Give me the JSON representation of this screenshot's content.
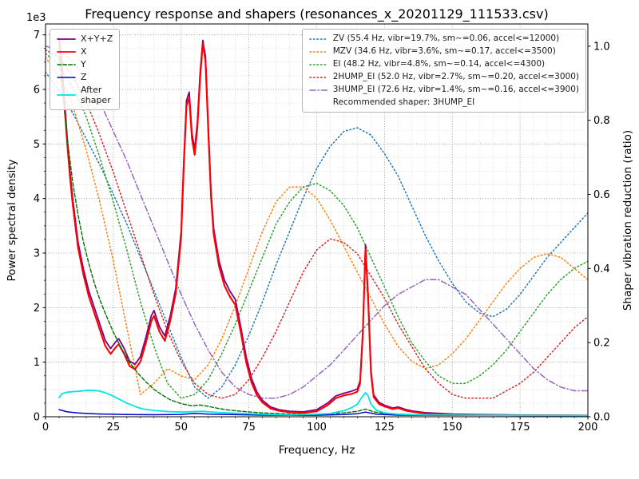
{
  "chart_data": {
    "type": "line",
    "title": "Frequency response and shapers (resonances_x_20201129_111533.csv)",
    "xlabel": "Frequency, Hz",
    "ylabel_left": "Power spectral density",
    "ylabel_right": "Shaper vibration reduction (ratio)",
    "offset_text": "1e3",
    "xlim": [
      0,
      200
    ],
    "ylim_left": [
      0,
      7200
    ],
    "ylim_right": [
      0,
      1.06
    ],
    "x_ticks": [
      0,
      25,
      50,
      75,
      100,
      125,
      150,
      175,
      200
    ],
    "x_tick_labels": [
      "0",
      "25",
      "50",
      "75",
      "100",
      "125",
      "150",
      "175",
      "200"
    ],
    "y_ticks_left": [
      0,
      1000,
      2000,
      3000,
      4000,
      5000,
      6000,
      7000
    ],
    "y_tick_labels_left": [
      "0",
      "1",
      "2",
      "3",
      "4",
      "5",
      "6",
      "7"
    ],
    "y_ticks_right": [
      0,
      0.2,
      0.4,
      0.6,
      0.8,
      1.0
    ],
    "y_tick_labels_right": [
      "0.0",
      "0.2",
      "0.4",
      "0.6",
      "0.8",
      "1.0"
    ],
    "x_minor_step": 5,
    "y_minor_step_left": 250,
    "grid": {
      "major_color": "#8f8f8f",
      "minor_color": "#d4d4d4",
      "on": true
    },
    "legend_left_position": "upper left",
    "legend_right_position": "upper right",
    "recommended_label": "Recommended shaper: 3HUMP_EI",
    "psd_series": [
      {
        "id": "x-y-z",
        "label": "X+Y+Z",
        "color": "#800080",
        "style": "solid",
        "width": 1.8,
        "x": [
          5,
          6,
          7,
          8,
          9,
          10,
          12,
          14,
          16,
          18,
          20,
          22,
          24,
          26,
          27,
          29,
          31,
          33,
          35,
          37,
          39,
          40,
          42,
          44,
          46,
          48,
          50,
          51,
          52,
          53,
          54,
          55,
          56,
          57,
          58,
          59,
          60,
          61,
          62,
          64,
          66,
          68,
          70,
          72,
          74,
          76,
          78,
          80,
          83,
          86,
          90,
          95,
          100,
          104,
          107,
          110,
          113,
          115,
          116,
          117,
          118,
          119,
          120,
          121,
          123,
          125,
          128,
          130,
          133,
          136,
          140,
          150,
          160,
          180,
          200
        ],
        "y": [
          6950,
          6500,
          5800,
          5100,
          4500,
          4000,
          3200,
          2700,
          2300,
          2000,
          1700,
          1400,
          1250,
          1380,
          1430,
          1250,
          1020,
          960,
          1100,
          1450,
          1850,
          1950,
          1650,
          1480,
          1850,
          2350,
          3400,
          4700,
          5800,
          5950,
          5200,
          4900,
          5400,
          6300,
          6900,
          6600,
          5350,
          4150,
          3450,
          2850,
          2500,
          2300,
          2150,
          1650,
          1100,
          700,
          450,
          300,
          180,
          130,
          100,
          90,
          130,
          250,
          380,
          430,
          470,
          510,
          660,
          1560,
          3150,
          2180,
          860,
          400,
          260,
          210,
          160,
          180,
          130,
          100,
          75,
          50,
          40,
          30,
          25
        ]
      },
      {
        "id": "x",
        "label": "X",
        "color": "#ff0000",
        "style": "solid",
        "width": 2.1,
        "x": [
          5,
          6,
          7,
          8,
          9,
          10,
          12,
          14,
          16,
          18,
          20,
          22,
          24,
          26,
          27,
          29,
          31,
          33,
          35,
          37,
          39,
          40,
          42,
          44,
          46,
          48,
          50,
          51,
          52,
          53,
          54,
          55,
          56,
          57,
          58,
          59,
          60,
          61,
          62,
          64,
          66,
          68,
          70,
          72,
          74,
          76,
          78,
          80,
          83,
          86,
          90,
          95,
          100,
          104,
          107,
          110,
          113,
          115,
          116,
          117,
          118,
          119,
          120,
          121,
          123,
          125,
          128,
          130,
          133,
          136,
          140,
          150,
          160,
          180,
          200
        ],
        "y": [
          6880,
          6400,
          5700,
          5000,
          4400,
          3900,
          3100,
          2600,
          2200,
          1900,
          1600,
          1300,
          1150,
          1280,
          1330,
          1150,
          930,
          870,
          1010,
          1350,
          1750,
          1850,
          1560,
          1390,
          1760,
          2260,
          3300,
          4600,
          5700,
          5850,
          5100,
          4800,
          5300,
          6200,
          6850,
          6500,
          5250,
          4050,
          3350,
          2750,
          2400,
          2200,
          2050,
          1550,
          1000,
          620,
          390,
          260,
          150,
          110,
          80,
          70,
          100,
          210,
          340,
          390,
          420,
          460,
          610,
          1500,
          3080,
          2110,
          800,
          360,
          230,
          190,
          140,
          160,
          110,
          85,
          60,
          40,
          32,
          26,
          21
        ]
      },
      {
        "id": "y",
        "label": "Y",
        "color": "#007000",
        "style": "dashed",
        "width": 1.4,
        "x": [
          5,
          6,
          7,
          8,
          10,
          12,
          14,
          16,
          18,
          20,
          22,
          25,
          28,
          31,
          34,
          37,
          40,
          43,
          46,
          50,
          54,
          57,
          60,
          64,
          68,
          72,
          76,
          80,
          90,
          100,
          110,
          115,
          118,
          121,
          125,
          130,
          140,
          160,
          180,
          200
        ],
        "y": [
          6600,
          6100,
          5600,
          5100,
          4300,
          3700,
          3200,
          2800,
          2450,
          2150,
          1900,
          1550,
          1250,
          1000,
          800,
          640,
          500,
          400,
          310,
          240,
          200,
          215,
          190,
          150,
          120,
          100,
          85,
          70,
          50,
          45,
          70,
          100,
          140,
          90,
          60,
          45,
          35,
          28,
          22,
          20
        ]
      },
      {
        "id": "z",
        "label": "Z",
        "color": "#0000cc",
        "style": "solid",
        "width": 1.5,
        "x": [
          5,
          8,
          12,
          16,
          20,
          25,
          30,
          40,
          50,
          55,
          60,
          70,
          80,
          100,
          110,
          115,
          118,
          122,
          130,
          150,
          200
        ],
        "y": [
          130,
          90,
          70,
          58,
          50,
          45,
          40,
          36,
          42,
          60,
          48,
          38,
          30,
          28,
          40,
          55,
          85,
          45,
          30,
          25,
          20
        ]
      },
      {
        "id": "after-shaper",
        "label": "After\nshaper",
        "color": "#00e5e5",
        "style": "solid",
        "width": 1.8,
        "x": [
          5,
          6,
          8,
          10,
          12,
          14,
          16,
          18,
          20,
          22,
          24,
          26,
          28,
          30,
          32,
          34,
          36,
          40,
          45,
          50,
          55,
          58,
          60,
          65,
          70,
          80,
          90,
          100,
          105,
          110,
          113,
          115,
          117,
          118,
          119,
          120,
          122,
          125,
          130,
          140,
          160,
          200
        ],
        "y": [
          350,
          420,
          450,
          460,
          465,
          475,
          485,
          480,
          470,
          440,
          400,
          350,
          300,
          250,
          210,
          170,
          140,
          115,
          95,
          85,
          95,
          100,
          90,
          75,
          65,
          45,
          35,
          45,
          60,
          110,
          170,
          230,
          380,
          440,
          380,
          230,
          120,
          70,
          45,
          35,
          28,
          22
        ]
      }
    ],
    "shaper_x": [
      0,
      5,
      10,
      15,
      20,
      25,
      30,
      35,
      40,
      45,
      50,
      55,
      60,
      65,
      70,
      75,
      80,
      85,
      90,
      95,
      100,
      105,
      110,
      115,
      120,
      125,
      130,
      135,
      140,
      145,
      150,
      155,
      160,
      165,
      170,
      175,
      180,
      185,
      190,
      195,
      200
    ],
    "shaper_series": [
      {
        "id": "zv",
        "label": "ZV (55.4 Hz, vibr=19.7%, sm~=0.06, accel<=12000)",
        "color": "#1f77b4",
        "style": "dotted",
        "width": 1.5,
        "values": [
          0.93,
          0.88,
          0.82,
          0.75,
          0.68,
          0.6,
          0.52,
          0.43,
          0.34,
          0.25,
          0.16,
          0.08,
          0.05,
          0.08,
          0.14,
          0.22,
          0.31,
          0.41,
          0.5,
          0.59,
          0.67,
          0.73,
          0.77,
          0.78,
          0.76,
          0.71,
          0.65,
          0.57,
          0.49,
          0.42,
          0.36,
          0.31,
          0.28,
          0.27,
          0.29,
          0.33,
          0.38,
          0.43,
          0.47,
          0.51,
          0.55
        ]
      },
      {
        "id": "mzv",
        "label": "MZV (34.6 Hz, vibr=3.6%, sm~=0.17, accel<=3500)",
        "color": "#ff7f0e",
        "style": "dotted",
        "width": 1.5,
        "values": [
          0.97,
          0.92,
          0.84,
          0.72,
          0.58,
          0.42,
          0.24,
          0.06,
          0.09,
          0.13,
          0.11,
          0.1,
          0.14,
          0.21,
          0.3,
          0.4,
          0.5,
          0.58,
          0.62,
          0.62,
          0.59,
          0.53,
          0.46,
          0.39,
          0.32,
          0.25,
          0.19,
          0.15,
          0.13,
          0.14,
          0.17,
          0.21,
          0.26,
          0.31,
          0.36,
          0.4,
          0.43,
          0.44,
          0.43,
          0.4,
          0.37
        ]
      },
      {
        "id": "ei",
        "label": "EI (48.2 Hz, vibr=4.8%, sm~=0.14, accel<=4300)",
        "color": "#2ca02c",
        "style": "dotted",
        "width": 1.5,
        "values": [
          0.98,
          0.95,
          0.89,
          0.81,
          0.7,
          0.58,
          0.45,
          0.31,
          0.19,
          0.09,
          0.05,
          0.06,
          0.1,
          0.17,
          0.25,
          0.34,
          0.43,
          0.52,
          0.58,
          0.62,
          0.63,
          0.61,
          0.57,
          0.51,
          0.43,
          0.35,
          0.27,
          0.2,
          0.15,
          0.11,
          0.09,
          0.09,
          0.11,
          0.14,
          0.18,
          0.23,
          0.28,
          0.33,
          0.37,
          0.4,
          0.42
        ]
      },
      {
        "id": "2hump_ei",
        "label": "2HUMP_EI (52.0 Hz, vibr=2.7%, sm~=0.20, accel<=3000)",
        "color": "#d62728",
        "style": "dotted",
        "width": 1.5,
        "values": [
          0.99,
          0.97,
          0.92,
          0.85,
          0.76,
          0.66,
          0.55,
          0.44,
          0.33,
          0.23,
          0.15,
          0.09,
          0.06,
          0.05,
          0.06,
          0.1,
          0.16,
          0.23,
          0.31,
          0.39,
          0.45,
          0.48,
          0.47,
          0.44,
          0.38,
          0.32,
          0.25,
          0.19,
          0.13,
          0.09,
          0.06,
          0.05,
          0.05,
          0.05,
          0.07,
          0.09,
          0.12,
          0.16,
          0.2,
          0.24,
          0.27
        ]
      },
      {
        "id": "3hump_ei",
        "label": "3HUMP_EI (72.6 Hz, vibr=1.4%, sm~=0.16, accel<=3900)",
        "color": "#9467bd",
        "style": "dashdot",
        "width": 1.5,
        "values": [
          1.0,
          0.99,
          0.96,
          0.91,
          0.85,
          0.77,
          0.69,
          0.6,
          0.51,
          0.42,
          0.33,
          0.25,
          0.18,
          0.12,
          0.08,
          0.06,
          0.05,
          0.05,
          0.06,
          0.08,
          0.11,
          0.14,
          0.18,
          0.22,
          0.26,
          0.3,
          0.33,
          0.35,
          0.37,
          0.37,
          0.35,
          0.33,
          0.29,
          0.25,
          0.21,
          0.17,
          0.13,
          0.1,
          0.08,
          0.07,
          0.07
        ]
      }
    ]
  }
}
